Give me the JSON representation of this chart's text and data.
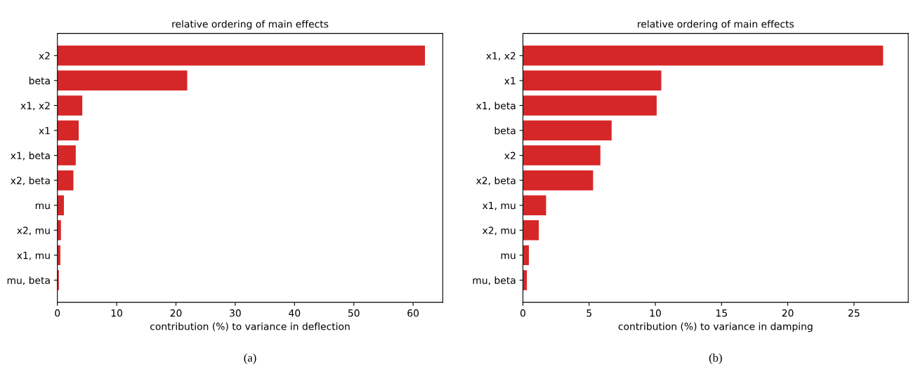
{
  "chart_data": [
    {
      "type": "bar",
      "orientation": "horizontal",
      "title": "relative ordering of main effects",
      "xlabel": "contribution (%) to variance in deflection",
      "categories": [
        "x2",
        "beta",
        "x1, x2",
        "x1",
        "x1, beta",
        "x2, beta",
        "mu",
        "x2, mu",
        "x1, mu",
        "mu, beta"
      ],
      "values": [
        62.0,
        21.9,
        4.2,
        3.6,
        3.1,
        2.7,
        1.1,
        0.6,
        0.5,
        0.25
      ],
      "color": "#d62728",
      "xlim": [
        0,
        65
      ],
      "xticks": [
        0,
        10,
        20,
        30,
        40,
        50,
        60
      ],
      "grid": false,
      "annotations": [
        "(a)"
      ]
    },
    {
      "type": "bar",
      "orientation": "horizontal",
      "title": "relative ordering of main effects",
      "xlabel": "contribution (%) to variance in damping",
      "categories": [
        "x1, x2",
        "x1",
        "x1, beta",
        "beta",
        "x2",
        "x2, beta",
        "x1, mu",
        "x2, mu",
        "mu",
        "mu, beta"
      ],
      "values": [
        27.2,
        10.45,
        10.1,
        6.7,
        5.85,
        5.3,
        1.75,
        1.2,
        0.45,
        0.3
      ],
      "color": "#d62728",
      "xlim": [
        0,
        29.1
      ],
      "xticks": [
        0,
        5,
        10,
        15,
        20,
        25
      ],
      "grid": false,
      "annotations": [
        "(b)"
      ]
    }
  ]
}
